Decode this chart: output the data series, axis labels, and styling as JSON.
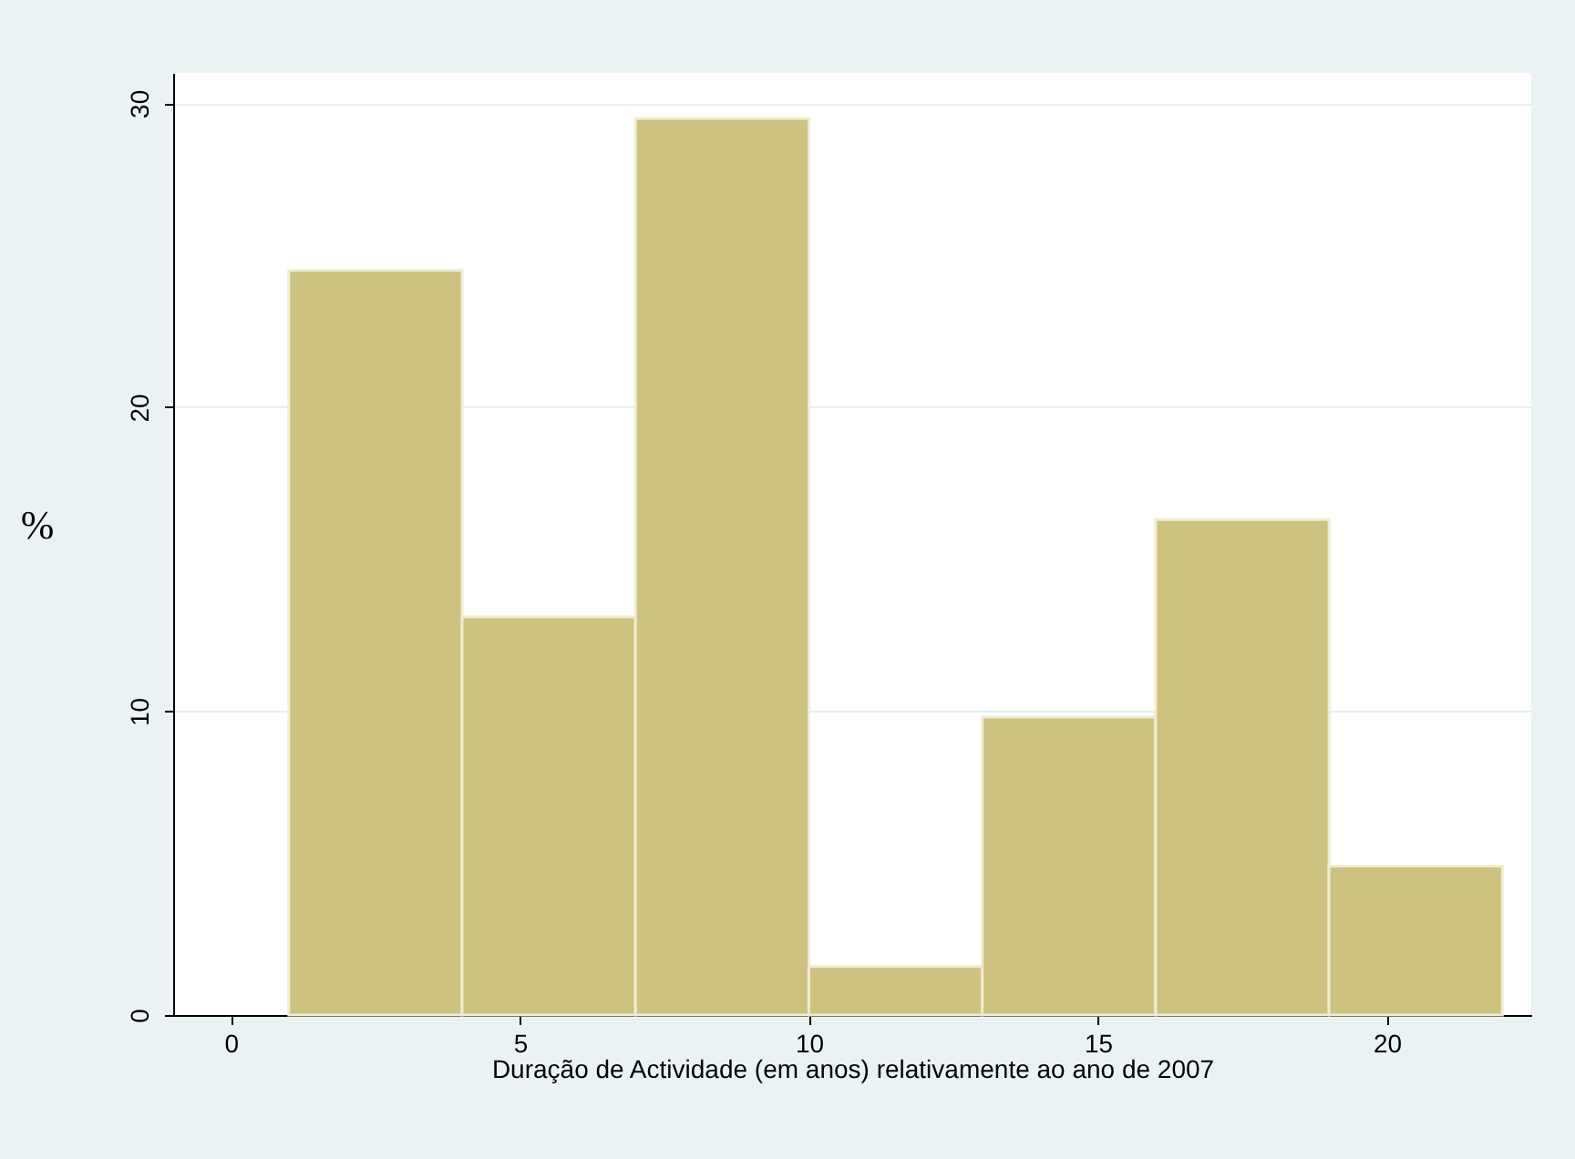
{
  "chart_data": {
    "type": "histogram",
    "xlabel": "Duração de Actividade (em anos) relativamente ao ano de 2007",
    "ylabel": "%",
    "bins": [
      1,
      4,
      7,
      10,
      13,
      16,
      19,
      22
    ],
    "values": [
      24.5,
      13.1,
      29.5,
      1.6,
      9.8,
      16.3,
      4.9
    ],
    "color": "#cdc280",
    "xlim": [
      -1,
      22.5
    ],
    "xticks": [
      0,
      5,
      10,
      15,
      20
    ],
    "ylim": [
      0,
      31
    ],
    "yticks": [
      0,
      10,
      20,
      30
    ],
    "grid": "y"
  }
}
